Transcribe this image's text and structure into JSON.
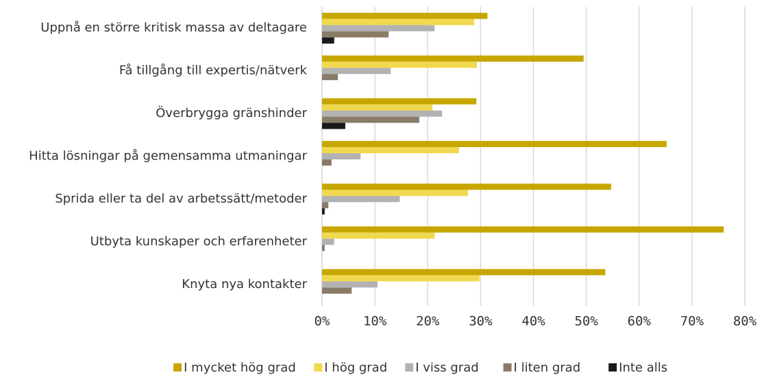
{
  "chart_data": {
    "type": "hbar",
    "categories": [
      "Uppnå en större kritisk massa av deltagare",
      "Få tillgång till expertis/nätverk",
      "Överbrygga gränshinder",
      "Hitta lösningar på gemensamma utmaningar",
      "Sprida eller ta del av arbetssätt/metoder",
      "Utbyta kunskaper och erfarenheter",
      "Knyta nya kontakter"
    ],
    "series": [
      {
        "name": "I mycket hög grad",
        "color": "#c8a600",
        "values": [
          31.3,
          49.5,
          29.2,
          65.2,
          54.7,
          76.0,
          53.6
        ]
      },
      {
        "name": "I hög grad",
        "color": "#f0d94e",
        "values": [
          28.8,
          29.3,
          20.9,
          25.9,
          27.6,
          21.3,
          29.8
        ]
      },
      {
        "name": "I viss grad",
        "color": "#b2b2b2",
        "values": [
          21.3,
          13.0,
          22.7,
          7.3,
          14.7,
          2.3,
          10.5
        ]
      },
      {
        "name": "I liten grad",
        "color": "#8a7b68",
        "values": [
          12.6,
          3.0,
          18.4,
          1.8,
          1.2,
          0.5,
          5.6
        ]
      },
      {
        "name": "Inte alls",
        "color": "#1a1a1a",
        "values": [
          2.3,
          0,
          4.4,
          0,
          0.5,
          0,
          0
        ]
      }
    ],
    "xlim": [
      0,
      80
    ],
    "xticks": [
      {
        "value": 0,
        "label": "0%"
      },
      {
        "value": 10,
        "label": "10%"
      },
      {
        "value": 20,
        "label": "20%"
      },
      {
        "value": 30,
        "label": "30%"
      },
      {
        "value": 40,
        "label": "40%"
      },
      {
        "value": 50,
        "label": "50%"
      },
      {
        "value": 60,
        "label": "60%"
      },
      {
        "value": 70,
        "label": "70%"
      },
      {
        "value": 80,
        "label": "80%"
      }
    ],
    "grid": true,
    "legend": "bottom"
  }
}
